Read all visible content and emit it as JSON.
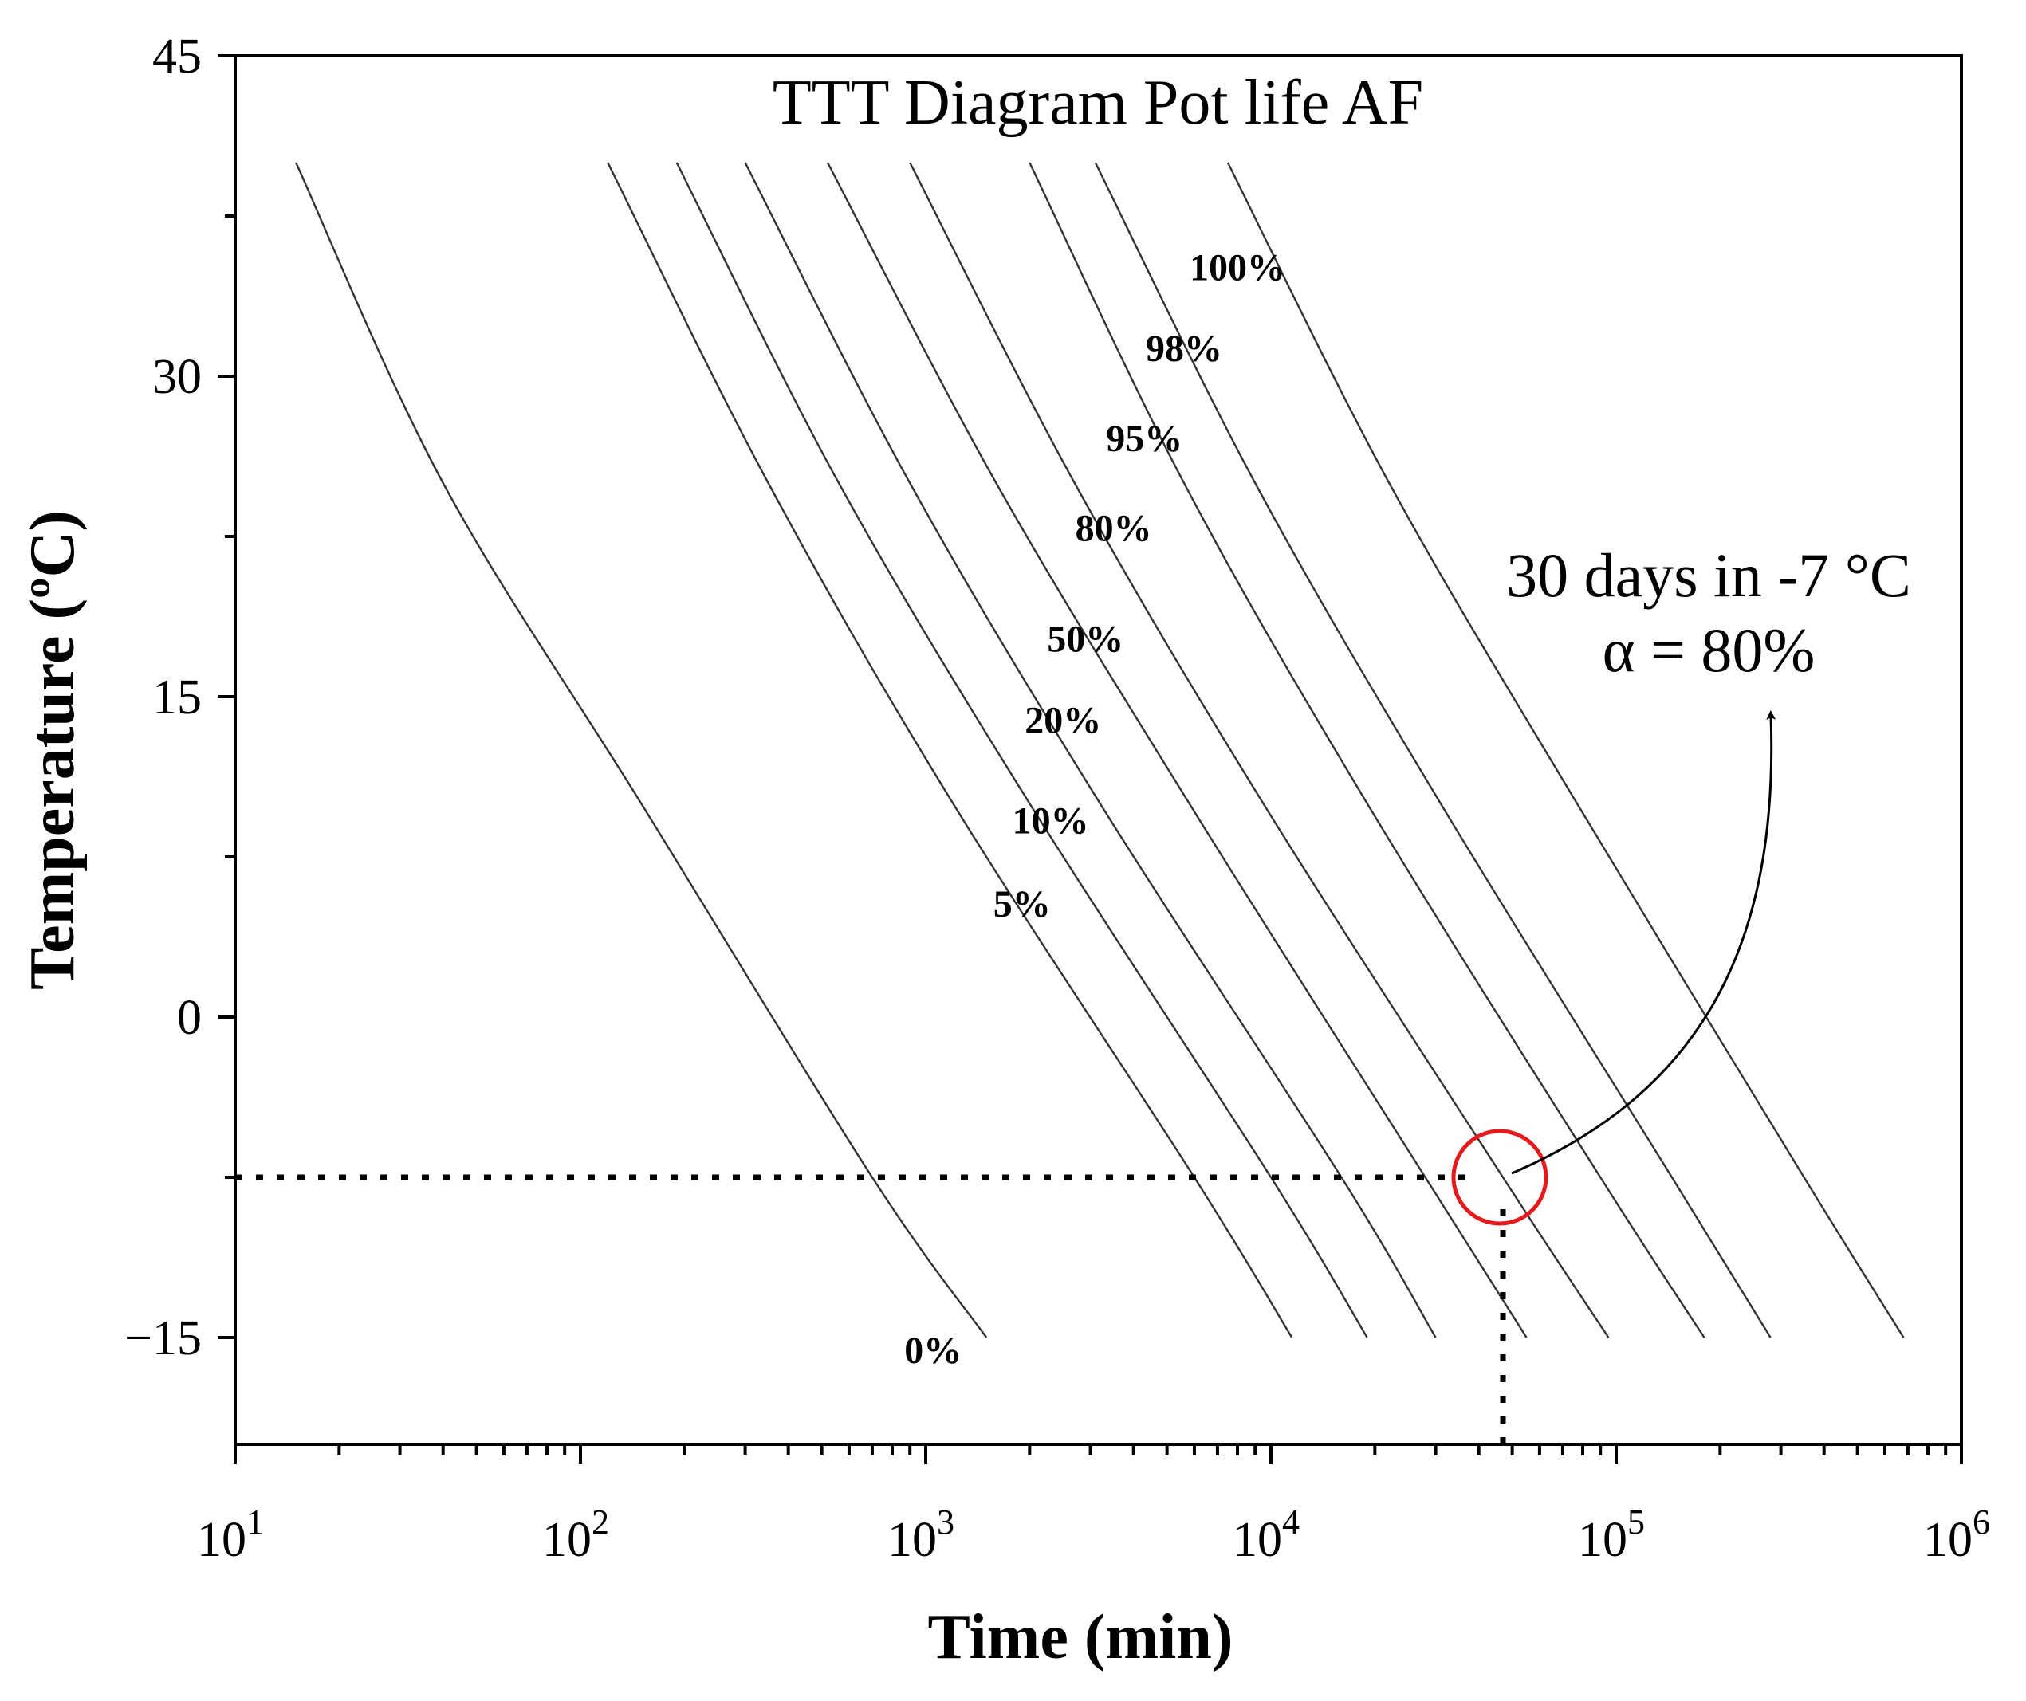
{
  "chart_data": {
    "type": "line",
    "title": "TTT Diagram Pot life AF",
    "xlabel": "Time (min)",
    "ylabel": "Temperature (ºC)",
    "xscale": "log",
    "xlim": [
      10,
      1000000
    ],
    "ylim": [
      -20,
      45
    ],
    "x_tick_labels": [
      {
        "value": 10,
        "base": "10",
        "exp": "1"
      },
      {
        "value": 100,
        "base": "10",
        "exp": "2"
      },
      {
        "value": 1000,
        "base": "10",
        "exp": "3"
      },
      {
        "value": 10000,
        "base": "10",
        "exp": "4"
      },
      {
        "value": 100000,
        "base": "10",
        "exp": "5"
      },
      {
        "value": 1000000,
        "base": "10",
        "exp": "6"
      }
    ],
    "y_ticks": [
      45,
      30,
      15,
      0,
      -15
    ],
    "y_tick_labels": [
      "45",
      "30",
      "15",
      "0",
      "−15"
    ],
    "grid": false,
    "series": [
      {
        "name": "0%",
        "label_at": [
          1050,
          -16.2
        ],
        "points": [
          [
            15,
            40
          ],
          [
            40,
            25
          ],
          [
            150,
            10
          ],
          [
            700,
            -7.5
          ],
          [
            1500,
            -15
          ]
        ]
      },
      {
        "name": "5%",
        "label_at": [
          1900,
          4.7
        ],
        "points": [
          [
            120,
            40
          ],
          [
            350,
            25
          ],
          [
            1200,
            10
          ],
          [
            6000,
            -7.5
          ],
          [
            11500,
            -15
          ]
        ]
      },
      {
        "name": "10%",
        "label_at": [
          2300,
          8.6
        ],
        "points": [
          [
            190,
            40
          ],
          [
            560,
            25
          ],
          [
            2000,
            10
          ],
          [
            10000,
            -7.5
          ],
          [
            19000,
            -15
          ]
        ]
      },
      {
        "name": "20%",
        "label_at": [
          2500,
          13.3
        ],
        "points": [
          [
            300,
            40
          ],
          [
            900,
            25
          ],
          [
            3200,
            10
          ],
          [
            16000,
            -7.5
          ],
          [
            30000,
            -15
          ]
        ]
      },
      {
        "name": "50%",
        "label_at": [
          2900,
          17.1
        ],
        "points": [
          [
            520,
            40
          ],
          [
            1600,
            25
          ],
          [
            5800,
            10
          ],
          [
            28000,
            -7.5
          ],
          [
            55000,
            -15
          ]
        ]
      },
      {
        "name": "80%",
        "label_at": [
          3500,
          22.3
        ],
        "points": [
          [
            900,
            40
          ],
          [
            2700,
            25
          ],
          [
            9500,
            10
          ],
          [
            47000,
            -7.5
          ],
          [
            95000,
            -15
          ]
        ]
      },
      {
        "name": "95%",
        "label_at": [
          4300,
          26.5
        ],
        "points": [
          [
            2000,
            40
          ],
          [
            5600,
            25
          ],
          [
            19000,
            10
          ],
          [
            90000,
            -7.5
          ],
          [
            180000,
            -15
          ]
        ]
      },
      {
        "name": "98%",
        "label_at": [
          5600,
          30.7
        ],
        "points": [
          [
            3100,
            40
          ],
          [
            9000,
            25
          ],
          [
            31000,
            10
          ],
          [
            145000,
            -7.5
          ],
          [
            280000,
            -15
          ]
        ]
      },
      {
        "name": "100%",
        "label_at": [
          8000,
          34.5
        ],
        "points": [
          [
            7500,
            40
          ],
          [
            22000,
            25
          ],
          [
            77000,
            10
          ],
          [
            350000,
            -7.5
          ],
          [
            680000,
            -15
          ]
        ]
      }
    ],
    "annotations": {
      "line1": "30 days in -7 °C",
      "line2": "α = 80%",
      "marker_point": [
        46000,
        -7.5
      ],
      "guide_y": -7.5,
      "guide_x": 47000,
      "marker_color": "#e41a1c"
    }
  }
}
